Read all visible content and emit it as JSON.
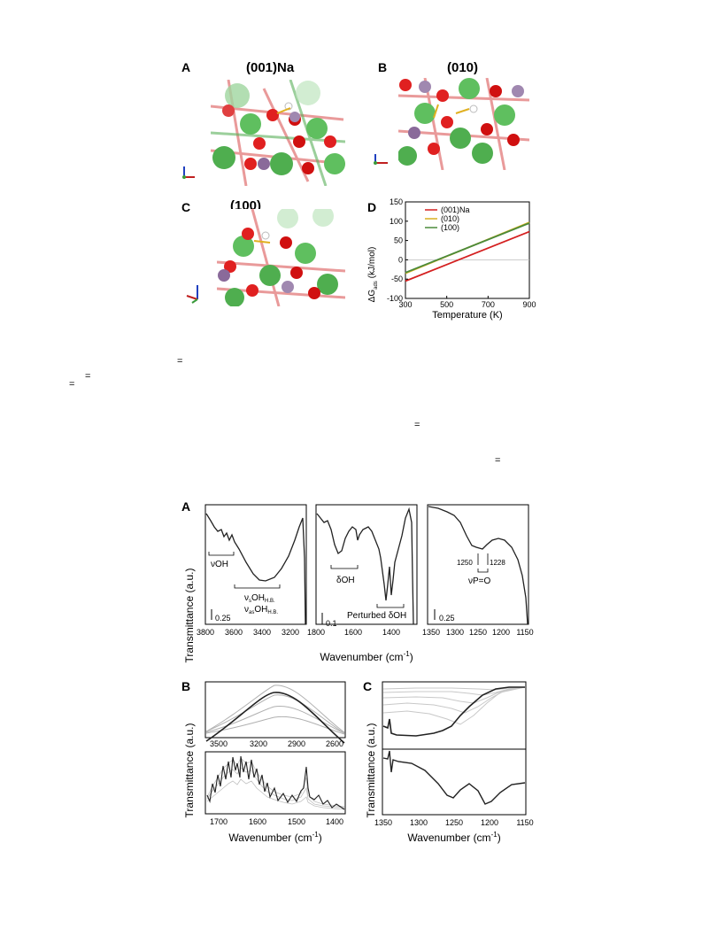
{
  "figure1": {
    "panels": [
      {
        "letter": "A",
        "title": "(001)Na"
      },
      {
        "letter": "B",
        "title": "(010)"
      },
      {
        "letter": "C",
        "title": "(100)"
      },
      {
        "letter": "D",
        "title": ""
      }
    ],
    "chart_data": {
      "type": "line",
      "xlabel": "Temperature (K)",
      "ylabel_main": "ΔG",
      "ylabel_sub": "ads",
      "ylabel_unit": "(kJ/mol)",
      "xlim": [
        300,
        900
      ],
      "ylim": [
        -100,
        150
      ],
      "xticks": [
        300,
        500,
        700,
        900
      ],
      "yticks": [
        -100,
        -50,
        0,
        50,
        100,
        150
      ],
      "legend_position": "top-left",
      "zero_line": true,
      "series": [
        {
          "name": "(001)Na",
          "color": "#d42020",
          "x": [
            300,
            900
          ],
          "y": [
            -55,
            73
          ]
        },
        {
          "name": "(010)",
          "color": "#d8b020",
          "x": [
            300,
            900
          ],
          "y": [
            -35,
            97
          ]
        },
        {
          "name": "(100)",
          "color": "#4a8a3a",
          "x": [
            300,
            900
          ],
          "y": [
            -33,
            95
          ]
        }
      ]
    }
  },
  "text_marks": [
    "=",
    "=",
    "=",
    "=",
    "="
  ],
  "figure2": {
    "panel_letters": [
      "A",
      "B",
      "C"
    ],
    "ylabel": "Transmittance (a.u.)",
    "xlabel": "Wavenumber (cm",
    "xlabel_sup": "-1",
    "xlabel_end": ")",
    "panelA": {
      "sub1": {
        "xticks": [
          3800,
          3600,
          3400,
          3200
        ],
        "annotations": {
          "voh": "νOH",
          "vs": "ν",
          "vs_sub": "s",
          "vs_rest": "OH",
          "vs_hb": "H.B.",
          "vas": "ν",
          "vas_sub": "as",
          "vas_rest": "OH",
          "vas_hb": "H.B."
        },
        "scale": "0.25"
      },
      "sub2": {
        "xticks": [
          1800,
          1600,
          1400
        ],
        "annotations": {
          "doh": "δOH",
          "perturbed": "Perturbed δOH"
        },
        "scale": "0.1"
      },
      "sub3": {
        "xticks": [
          1350,
          1300,
          1250,
          1200,
          1150
        ],
        "annotations": {
          "p1250": "1250",
          "p1228": "1228",
          "vpo": "νP=O"
        },
        "scale": "0.25"
      }
    },
    "panelB": {
      "top_xticks": [
        3500,
        3200,
        2900,
        2600
      ],
      "bottom_xticks": [
        1700,
        1600,
        1500,
        1400
      ]
    },
    "panelC": {
      "xticks": [
        1350,
        1300,
        1250,
        1200,
        1150
      ]
    },
    "colors": {
      "line": "#222222",
      "frame": "#000000",
      "gray_series": "#b0b0b0"
    }
  }
}
